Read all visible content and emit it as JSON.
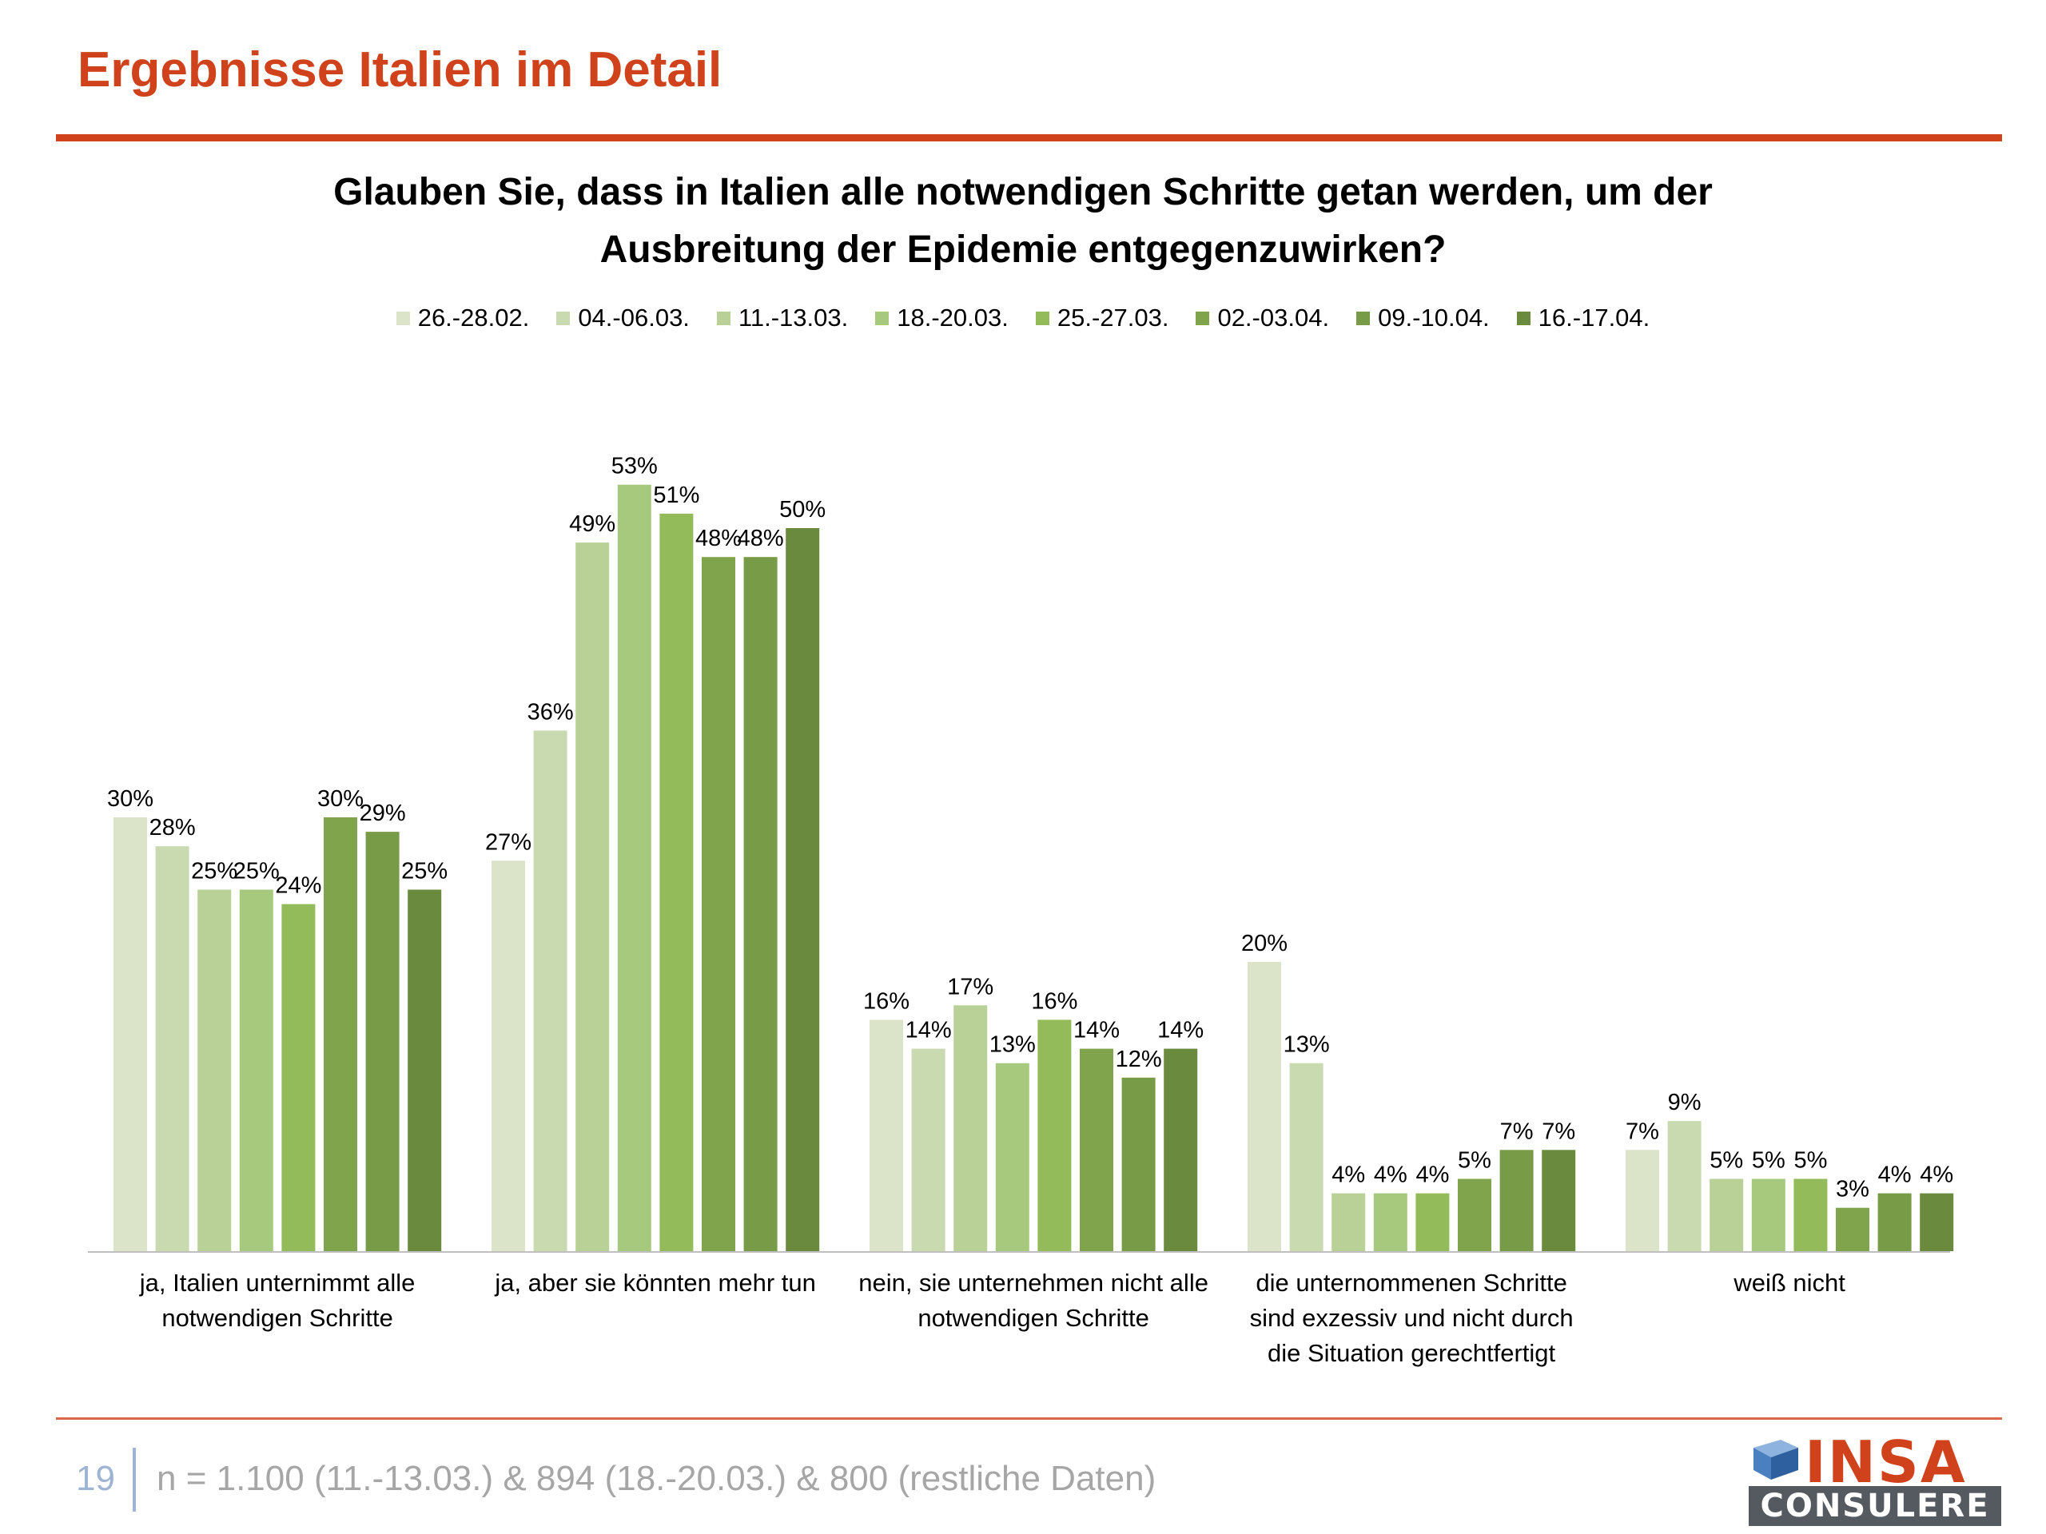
{
  "page_title": "Ergebnisse Italien im Detail",
  "footer": {
    "page_number": "19",
    "note": "n = 1.100 (11.-13.03.) & 894 (18.-20.03.) & 800 (restliche Daten)"
  },
  "logo": {
    "line1": "INSA",
    "line2": "CONSULERE"
  },
  "colors": {
    "accent": "#d0421b",
    "series": [
      "#dbe4c9",
      "#c9dab1",
      "#b9d197",
      "#a6c97d",
      "#93bb5a",
      "#7fa44c",
      "#789b47",
      "#6a8a3e"
    ]
  },
  "chart_data": {
    "type": "bar",
    "title_line1": "Glauben Sie, dass in Italien alle notwendigen Schritte getan werden, um der",
    "title_line2": "Ausbreitung der Epidemie entgegenzuwirken?",
    "categories": [
      [
        "ja, Italien unternimmt alle",
        "notwendigen Schritte"
      ],
      [
        "ja, aber sie könnten mehr tun"
      ],
      [
        "nein, sie unternehmen nicht alle",
        "notwendigen Schritte"
      ],
      [
        "die unternommenen Schritte",
        "sind exzessiv und nicht durch",
        "die Situation gerechtfertigt"
      ],
      [
        "weiß nicht"
      ]
    ],
    "series": [
      {
        "name": "26.-28.02.",
        "values": [
          30,
          27,
          16,
          20,
          7
        ]
      },
      {
        "name": "04.-06.03.",
        "values": [
          28,
          36,
          14,
          13,
          9
        ]
      },
      {
        "name": "11.-13.03.",
        "values": [
          25,
          49,
          17,
          4,
          5
        ]
      },
      {
        "name": "18.-20.03.",
        "values": [
          25,
          53,
          13,
          4,
          5
        ]
      },
      {
        "name": "25.-27.03.",
        "values": [
          24,
          51,
          16,
          4,
          5
        ]
      },
      {
        "name": "02.-03.04.",
        "values": [
          30,
          48,
          14,
          5,
          3
        ]
      },
      {
        "name": "09.-10.04.",
        "values": [
          29,
          48,
          12,
          7,
          4
        ]
      },
      {
        "name": "16.-17.04.",
        "values": [
          25,
          50,
          14,
          7,
          4
        ]
      }
    ],
    "value_suffix": "%",
    "ylim": [
      0,
      55
    ],
    "grid": false,
    "legend_position": "top"
  }
}
